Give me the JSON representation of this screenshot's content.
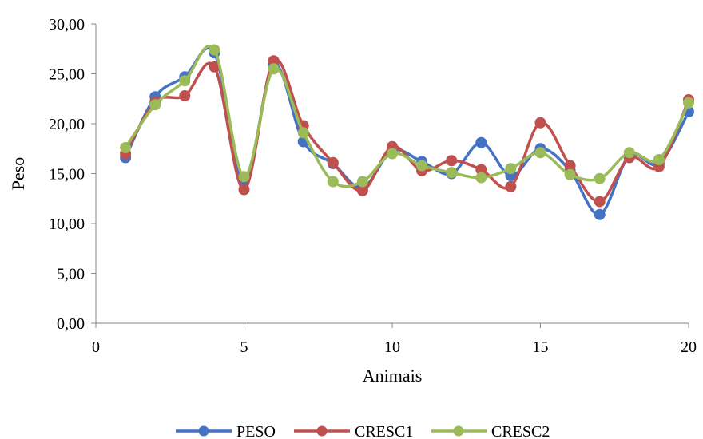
{
  "chart_data": {
    "type": "line",
    "title": "",
    "xlabel": "Animais",
    "ylabel": "Peso",
    "xlim": [
      0,
      20
    ],
    "ylim": [
      0,
      30
    ],
    "x_ticks": [
      0,
      5,
      10,
      15,
      20
    ],
    "y_ticks": [
      0,
      5,
      10,
      15,
      20,
      25,
      30
    ],
    "x_tick_labels": [
      "0",
      "5",
      "10",
      "15",
      "20"
    ],
    "y_tick_labels": [
      "0,00",
      "5,00",
      "10,00",
      "15,00",
      "20,00",
      "25,00",
      "30,00"
    ],
    "grid": false,
    "legend_position": "bottom",
    "smooth": true,
    "x": [
      1,
      2,
      3,
      4,
      5,
      6,
      7,
      8,
      9,
      10,
      11,
      12,
      13,
      14,
      15,
      16,
      17,
      18,
      19,
      20
    ],
    "series": [
      {
        "name": "PESO",
        "color": "#4472C4",
        "values": [
          16.6,
          22.7,
          24.7,
          27.1,
          14.2,
          25.9,
          18.2,
          16.0,
          13.6,
          17.3,
          16.2,
          15.0,
          18.1,
          14.8,
          17.5,
          15.3,
          10.9,
          16.8,
          16.0,
          21.2
        ]
      },
      {
        "name": "CRESC1",
        "color": "#C0504D",
        "values": [
          17.0,
          22.2,
          22.8,
          25.7,
          13.4,
          26.3,
          19.8,
          16.1,
          13.3,
          17.7,
          15.3,
          16.3,
          15.4,
          13.7,
          20.1,
          15.8,
          12.2,
          16.6,
          15.7,
          22.4
        ]
      },
      {
        "name": "CRESC2",
        "color": "#9BBB59",
        "values": [
          17.6,
          21.9,
          24.3,
          27.4,
          14.7,
          25.5,
          19.1,
          14.2,
          14.2,
          17.0,
          15.8,
          15.1,
          14.6,
          15.5,
          17.1,
          14.9,
          14.5,
          17.1,
          16.4,
          22.1
        ]
      }
    ]
  }
}
